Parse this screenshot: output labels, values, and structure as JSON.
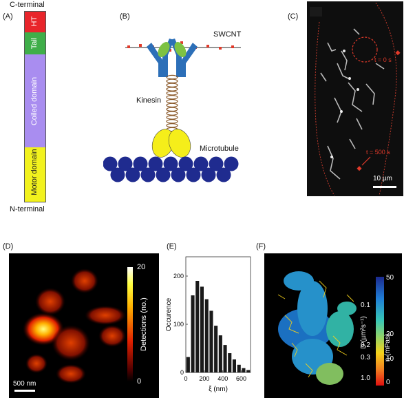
{
  "panels": {
    "A": {
      "label": "(A)",
      "top_label": "C-terminal",
      "bottom_label": "N-terminal",
      "segments": [
        {
          "name": "HT",
          "color": "#e8252b"
        },
        {
          "name": "Tail",
          "color": "#3fae49"
        },
        {
          "name": "Coiled domain",
          "color": "#a98df0"
        },
        {
          "name": "Motor domain",
          "color": "#f2f21d"
        }
      ]
    },
    "B": {
      "label": "(B)",
      "swcnt_label": "SWCNT",
      "kinesin_label": "Kinesin",
      "microtubule_label": "Microtubule",
      "colors": {
        "microtubule": "#1f2b8f",
        "heads": "#f5ee1a",
        "arms": "#2c6fb8",
        "green": "#7dc243",
        "coil": "#8b5a2b",
        "dots": "#e23a2a"
      }
    },
    "C": {
      "label": "(C)",
      "t0_label": "t = 0 s",
      "t500_label": "t = 500 s",
      "scalebar_label": "10 µm"
    },
    "D": {
      "label": "(D)",
      "colorbar_title": "Detections (no.)",
      "colorbar_max": "20",
      "colorbar_min": "0",
      "scalebar_label": "500 nm"
    },
    "E": {
      "label": "(E)",
      "chart_data": {
        "type": "bar",
        "xlabel": "ξ (nm)",
        "ylabel": "Occurence",
        "xticks": [
          "0",
          "200",
          "400",
          "600"
        ],
        "yticks": [
          "0",
          "100",
          "200"
        ],
        "xlim": [
          0,
          700
        ],
        "ylim": [
          0,
          240
        ],
        "bin_width": 50,
        "bin_starts": [
          0,
          50,
          100,
          150,
          200,
          250,
          300,
          350,
          400,
          450,
          500,
          550,
          600,
          650
        ],
        "values": [
          32,
          160,
          190,
          178,
          152,
          128,
          97,
          77,
          57,
          40,
          27,
          16,
          9,
          5
        ],
        "bar_color": "#1a1a1a"
      }
    },
    "F": {
      "label": "(F)",
      "left_axis_title": "D (µm²s⁻¹)",
      "right_axis_title": "η (mPas)",
      "left_ticks": [
        "0.1",
        "0.2",
        "0.3",
        "1.0"
      ],
      "right_ticks": [
        "50",
        "20",
        "10",
        "0"
      ]
    }
  }
}
